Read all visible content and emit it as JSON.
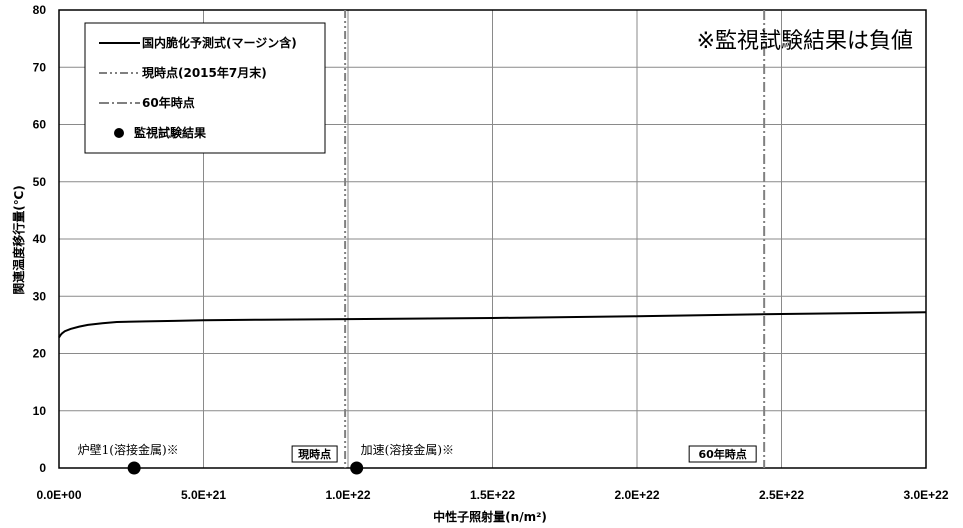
{
  "chart_data": {
    "type": "line",
    "title": "",
    "xlabel": "中性子照射量(n/m²)",
    "ylabel": "関連温度移行量(℃)",
    "xlim": [
      0,
      3e+22
    ],
    "ylim": [
      0,
      80
    ],
    "grid": true,
    "legend_placement": "top-left",
    "x_ticks": [
      0,
      5e+21,
      1e+22,
      1.5e+22,
      2e+22,
      2.5e+22,
      3e+22
    ],
    "x_tick_labels": [
      "0.0E+00",
      "5.0E+21",
      "1.0E+22",
      "1.5E+22",
      "2.0E+22",
      "2.5E+22",
      "3.0E+22"
    ],
    "y_ticks": [
      0,
      10,
      20,
      30,
      40,
      50,
      60,
      70,
      80
    ],
    "y_tick_labels": [
      "0",
      "10",
      "20",
      "30",
      "40",
      "50",
      "60",
      "70",
      "80"
    ],
    "series": [
      {
        "name": "国内脆化予測式(マージン含)",
        "kind": "line",
        "color": "#000000",
        "x": [
          0,
          5e+19,
          1e+20,
          2e+20,
          4e+20,
          7e+20,
          1e+21,
          1.5e+21,
          2e+21,
          3e+21,
          4e+21,
          5e+21,
          7e+21,
          1e+22,
          1.5e+22,
          2e+22,
          2.5e+22,
          3e+22
        ],
        "y": [
          22.8,
          23.2,
          23.5,
          23.9,
          24.3,
          24.7,
          25.0,
          25.3,
          25.5,
          25.6,
          25.7,
          25.8,
          25.9,
          26.0,
          26.2,
          26.5,
          26.9,
          27.2
        ]
      },
      {
        "name": "監視試験結果",
        "kind": "scatter",
        "color": "#000000",
        "points": [
          {
            "x": 2.6e+21,
            "y": 0,
            "label": "炉壁1(溶接金属)※"
          },
          {
            "x": 1.03e+22,
            "y": 0,
            "label": "加速(溶接金属)※"
          }
        ]
      }
    ],
    "vertical_lines": [
      {
        "name": "現時点(2015年7月末)",
        "x": 9.9e+21,
        "style": "dash-dot-dot",
        "color": "#808080",
        "marker_label": "現時点"
      },
      {
        "name": "60年時点",
        "x": 2.44e+22,
        "style": "dash-dot",
        "color": "#808080",
        "marker_label": "60年時点"
      }
    ],
    "legend": [
      {
        "label": "国内脆化予測式(マージン含)",
        "style": "solid"
      },
      {
        "label": "現時点(2015年7月末)",
        "style": "dash-dot-dot"
      },
      {
        "label": "60年時点",
        "style": "dash-dot"
      },
      {
        "label": "監視試験結果",
        "style": "marker"
      }
    ],
    "annotations": [
      {
        "text": "※監視試験結果は負値",
        "position": "top-right"
      }
    ]
  }
}
